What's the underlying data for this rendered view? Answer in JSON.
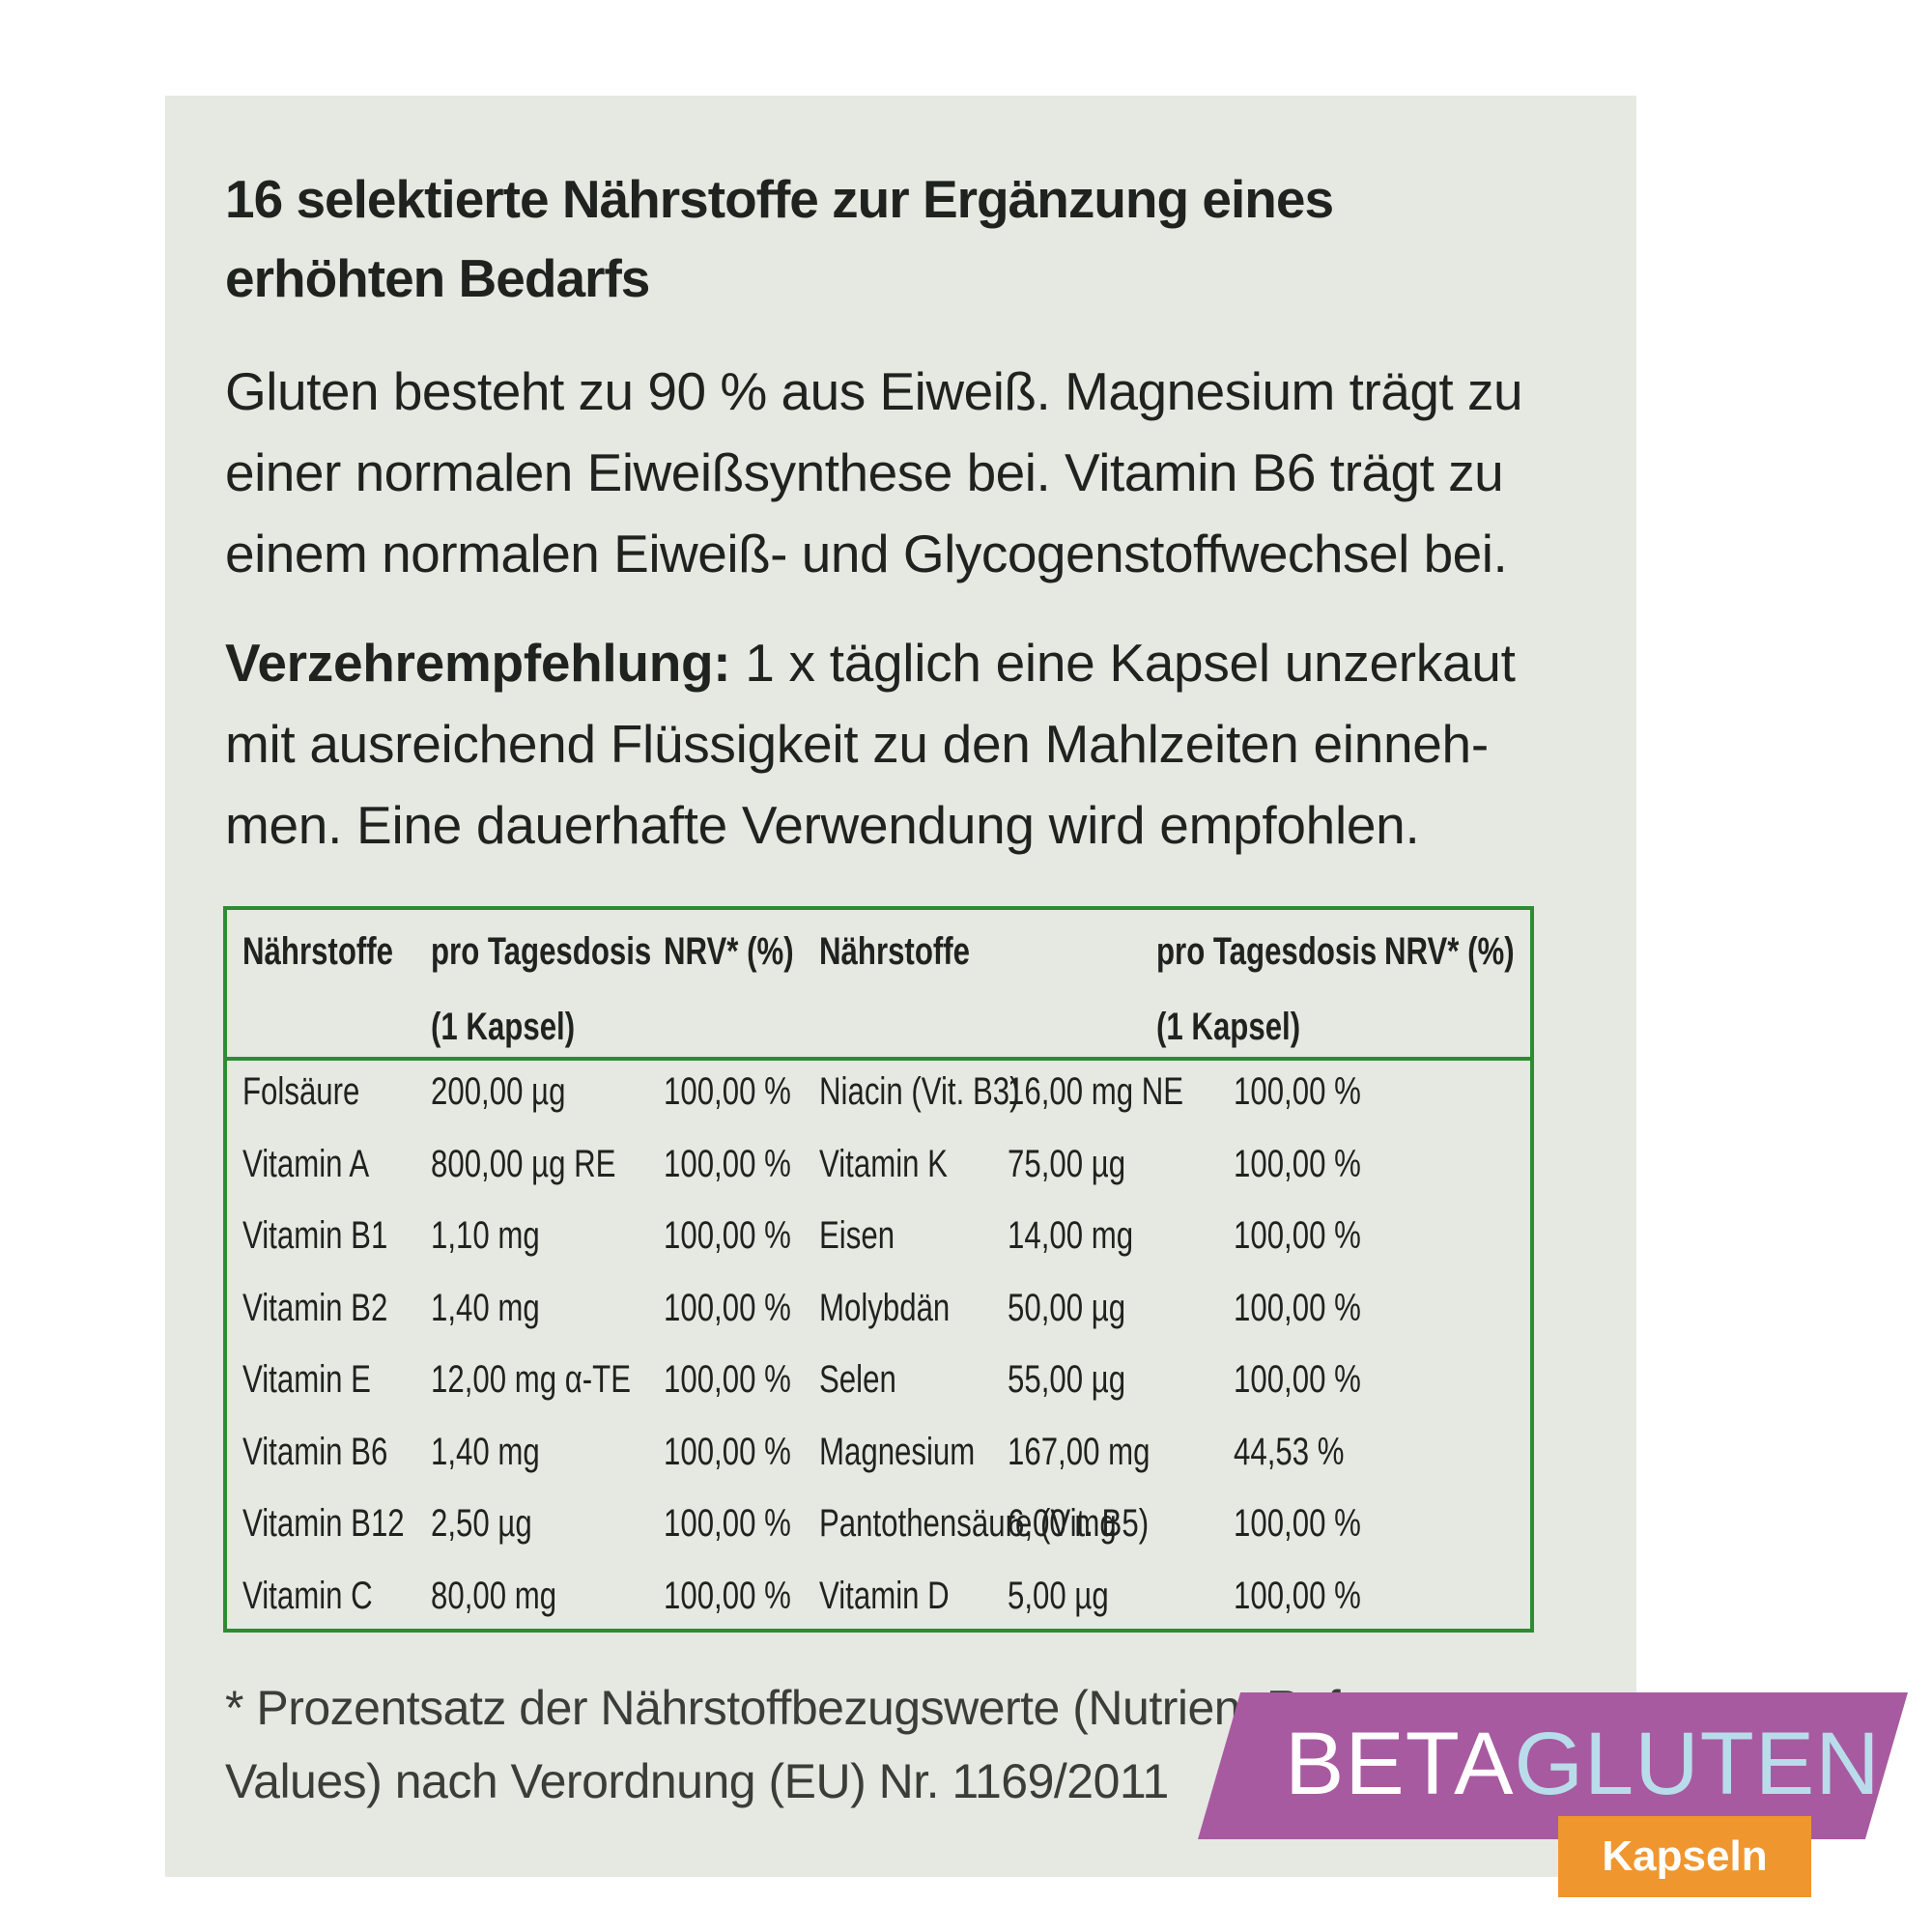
{
  "heading": {
    "line1": "16 selektierte Nährstoffe zur Ergänzung eines",
    "line2": "erhöhten Bedarfs"
  },
  "intro": {
    "line1": "Gluten besteht zu 90 % aus Eiweiß. Magnesium trägt zu",
    "line2": "einer normalen Eiweißsynthese bei. Vitamin B6 trägt zu",
    "line3": "einem normalen Eiweiß- und Glycogenstoffwechsel bei."
  },
  "dose": {
    "label": "Verzehrempfehlung:",
    "line1_rest": " 1 x täglich eine Kapsel unzerkaut",
    "line2": "mit ausreichend Flüssigkeit zu den Mahlzeiten einneh-",
    "line3": "men. Eine dauerhafte Verwendung wird empfohlen."
  },
  "table": {
    "headers": {
      "nutrient": "Nährstoffe",
      "dose_line1": "pro Tagesdosis",
      "dose_line2": "(1 Kapsel)",
      "nrv": "NRV* (%)"
    },
    "left": [
      {
        "name": "Folsäure",
        "dose": "200,00 µg",
        "nrv": "100,00 %"
      },
      {
        "name": "Vitamin A",
        "dose": "800,00 µg RE",
        "nrv": "100,00 %"
      },
      {
        "name": "Vitamin B1",
        "dose": "1,10 mg",
        "nrv": "100,00 %"
      },
      {
        "name": "Vitamin B2",
        "dose": "1,40 mg",
        "nrv": "100,00 %"
      },
      {
        "name": "Vitamin E",
        "dose": "12,00 mg α-TE",
        "nrv": "100,00 %"
      },
      {
        "name": "Vitamin B6",
        "dose": "1,40 mg",
        "nrv": "100,00 %"
      },
      {
        "name": "Vitamin B12",
        "dose": "2,50 µg",
        "nrv": "100,00 %"
      },
      {
        "name": "Vitamin C",
        "dose": "80,00 mg",
        "nrv": "100,00 %"
      }
    ],
    "right": [
      {
        "name": "Niacin (Vit. B3)",
        "dose": "16,00 mg NE",
        "nrv": "100,00 %"
      },
      {
        "name": "Vitamin K",
        "dose": "75,00 µg",
        "nrv": "100,00 %"
      },
      {
        "name": "Eisen",
        "dose": "14,00 mg",
        "nrv": "100,00 %"
      },
      {
        "name": "Molybdän",
        "dose": "50,00 µg",
        "nrv": "100,00 %"
      },
      {
        "name": "Selen",
        "dose": "55,00 µg",
        "nrv": "100,00 %"
      },
      {
        "name": "Magnesium",
        "dose": "167,00 mg",
        "nrv": "44,53 %"
      },
      {
        "name": "Pantothensäure (Vit. B5)",
        "dose": "6,00 mg",
        "nrv": "100,00 %"
      },
      {
        "name": "Vitamin D",
        "dose": "5,00 µg",
        "nrv": "100,00 %"
      }
    ]
  },
  "footnote": {
    "line1": "* Prozentsatz der Nährstoffbezugswerte (Nutrient Reference",
    "line2": "Values) nach Verordnung (EU) Nr. 1169/2011"
  },
  "brand": {
    "part1": "BETA",
    "part2": "GLUTEN",
    "subtitle": "Kapseln",
    "colors": {
      "band": "#a85aa0",
      "gluten": "#b9dcea",
      "badge": "#f0962e",
      "table_border": "#2e8b33"
    }
  }
}
